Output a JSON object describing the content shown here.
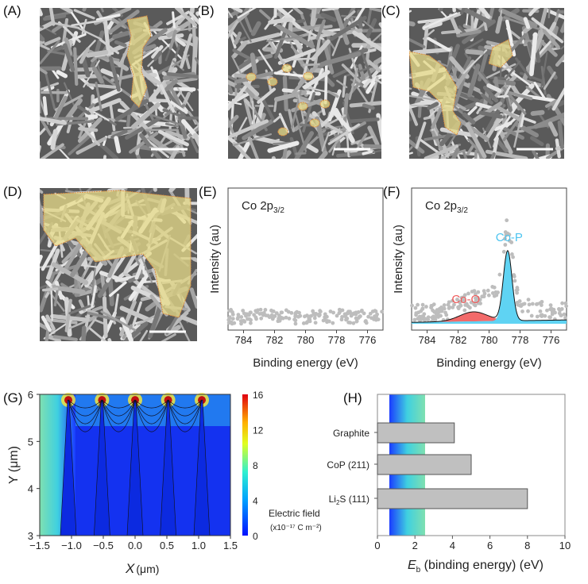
{
  "panels": {
    "A": "(A)",
    "B": "(B)",
    "C": "(C)",
    "D": "(D)",
    "E": "(E)",
    "F": "(F)",
    "G": "(G)",
    "H": "(H)"
  },
  "chart_data": [
    {
      "panel": "E",
      "type": "scatter",
      "title": "Co 2p3/2",
      "title_main": "Co 2p",
      "title_sub": "3/2",
      "xlabel": "Binding energy (eV)",
      "ylabel": "Intensity (au)",
      "xlim": [
        785,
        775
      ],
      "xticks": [
        "784",
        "782",
        "780",
        "778",
        "776"
      ],
      "description_level": "flat noisy baseline, no peaks"
    },
    {
      "panel": "F",
      "type": "scatter",
      "title_main": "Co 2p",
      "title_sub": "3/2",
      "xlabel": "Binding energy (eV)",
      "ylabel": "Intensity (au)",
      "xlim": [
        785,
        775
      ],
      "xticks": [
        "784",
        "782",
        "780",
        "778",
        "776"
      ],
      "peaks": [
        {
          "name": "Co-O",
          "center": 781.0,
          "color": "#f26a6a"
        },
        {
          "name": "Co-P",
          "center": 778.8,
          "color": "#5fd3f3"
        }
      ]
    },
    {
      "panel": "G",
      "type": "heatmap",
      "xlabel_main": "X",
      "xlabel_unit": "(μm)",
      "ylabel": "Y (μm)",
      "xticks": [
        "−1.5",
        "−1.0",
        "−0.5",
        "0.0",
        "0.5",
        "1.0",
        "1.5"
      ],
      "yticks": [
        "3",
        "4",
        "5",
        "6"
      ],
      "xlim": [
        -1.5,
        1.5
      ],
      "ylim": [
        3,
        6
      ],
      "colorbar": {
        "ticks": [
          "0",
          "4",
          "8",
          "12",
          "16"
        ],
        "label": "Electric field",
        "unit": "(x10⁻¹⁷ C m⁻²)"
      },
      "tips_x": [
        -1.05,
        -0.52,
        0.0,
        0.52,
        1.05
      ]
    },
    {
      "panel": "H",
      "type": "bar",
      "orientation": "horizontal",
      "categories": [
        "Graphite",
        "CoP (211)",
        "Li2S (111)"
      ],
      "category_labels": [
        {
          "main": "Graphite",
          "sub": "",
          "rest": ""
        },
        {
          "main": "CoP (211)",
          "sub": "",
          "rest": ""
        },
        {
          "main": "Li",
          "sub": "2",
          "rest": "S (111)"
        }
      ],
      "values": [
        4.1,
        5.0,
        8.0
      ],
      "xlim": [
        0,
        10
      ],
      "xticks": [
        "0",
        "2",
        "4",
        "6",
        "8",
        "10"
      ],
      "xlabel_sym": "E",
      "xlabel_sub": "b",
      "xlabel_rest": " (binding energy) (eV)"
    }
  ],
  "colors": {
    "bar": "#c0c0c0",
    "overlay": "#e8dc8a"
  }
}
